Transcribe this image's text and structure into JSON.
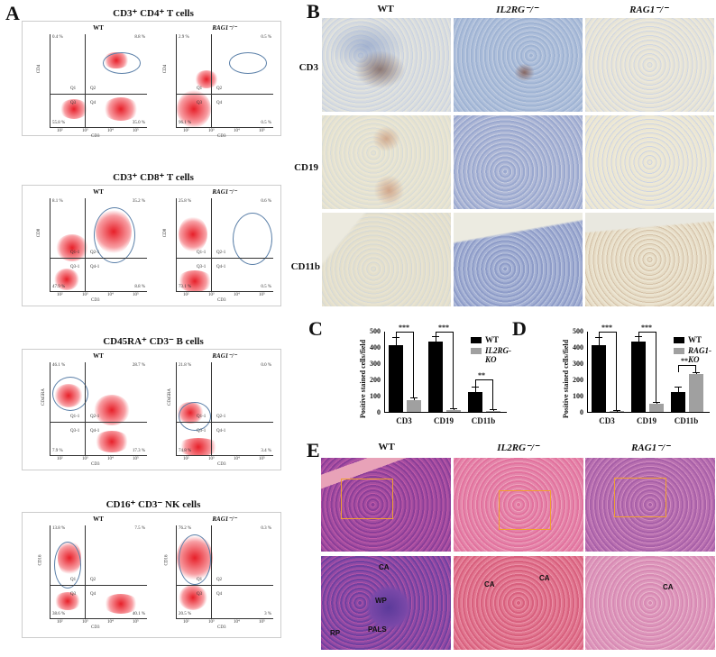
{
  "panels": {
    "A": {
      "label": "A",
      "sections": [
        {
          "title": "CD3⁺ CD4⁺ T cells",
          "ylabel": "CD4",
          "xlabel": "CD3",
          "plots": [
            {
              "group": "WT",
              "q": [
                "0.4 %",
                "8.8 %",
                "55.8 %",
                "35.0 %"
              ],
              "gates": [
                "Q1",
                "Q2",
                "Q3",
                "Q4"
              ]
            },
            {
              "group": "RAG1⁻/⁻",
              "q": [
                "2.9 %",
                "0.5 %",
                "96.1 %",
                "0.5 %"
              ],
              "gates": [
                "Q1",
                "Q2",
                "Q3",
                "Q4"
              ]
            }
          ]
        },
        {
          "title": "CD3⁺ CD8⁺ T cells",
          "ylabel": "CD8",
          "xlabel": "CD3",
          "plots": [
            {
              "group": "WT",
              "q": [
                "8.1 %",
                "35.2 %",
                "47.9 %",
                "8.8 %"
              ],
              "gates": [
                "Q1-1",
                "Q2-1",
                "Q3-1",
                "Q4-1"
              ]
            },
            {
              "group": "RAG1⁻/⁻",
              "q": [
                "25.8 %",
                "0.6 %",
                "73.1 %",
                "0.5 %"
              ],
              "gates": [
                "Q1-1",
                "Q2-1",
                "Q3-1",
                "Q4-1"
              ]
            }
          ]
        },
        {
          "title": "CD45RA⁺ CD3⁻ B cells",
          "ylabel": "CD45RA",
          "xlabel": "CD3",
          "plots": [
            {
              "group": "WT",
              "q": [
                "46.1 %",
                "28.7 %",
                "7.9 %",
                "17.3 %"
              ],
              "gates": [
                "Q1-1",
                "Q2-1",
                "Q3-1",
                "Q4-1"
              ]
            },
            {
              "group": "RAG1⁻/⁻",
              "q": [
                "21.8 %",
                "0.0 %",
                "74.8 %",
                "3.4 %"
              ],
              "gates": [
                "Q1-1",
                "Q2-1",
                "Q3-1",
                "Q4-1"
              ]
            }
          ]
        },
        {
          "title": "CD16⁺ CD3⁻ NK cells",
          "ylabel": "CD16",
          "xlabel": "CD3",
          "plots": [
            {
              "group": "WT",
              "q": [
                "13.8 %",
                "7.5 %",
                "38.6 %",
                "40.1 %"
              ],
              "gates": [
                "Q1",
                "Q2",
                "Q3",
                "Q4"
              ]
            },
            {
              "group": "RAG1⁻/⁻",
              "q": [
                "76.2 %",
                "0.3 %",
                "20.5 %",
                "3 %"
              ],
              "gates": [
                "Q1",
                "Q2",
                "Q3",
                "Q4"
              ]
            }
          ]
        }
      ],
      "ticks": [
        "10²",
        "10³",
        "10⁴",
        "10⁵"
      ]
    },
    "B": {
      "label": "B",
      "columns": [
        "WT",
        "IL2RG⁻/⁻",
        "RAG1⁻/⁻"
      ],
      "rows": [
        "CD3",
        "CD19",
        "CD11b"
      ]
    },
    "C": {
      "label": "C"
    },
    "D": {
      "label": "D"
    },
    "E": {
      "label": "E",
      "columns": [
        "WT",
        "IL2RG⁻/⁻",
        "RAG1⁻/⁻"
      ],
      "annotations": {
        "wt": [
          "CA",
          "WP",
          "PALS",
          "RP"
        ],
        "il2rg": [
          "CA",
          "CA"
        ],
        "rag1": [
          "CA"
        ]
      }
    }
  },
  "chart_data": [
    {
      "id": "C",
      "type": "bar",
      "categories": [
        "CD3",
        "CD19",
        "CD11b"
      ],
      "series": [
        {
          "name": "WT",
          "color": "#000000",
          "values": [
            410,
            435,
            125
          ],
          "errors": [
            48,
            28,
            25
          ]
        },
        {
          "name": "IL2RG-KO",
          "color": "#a0a0a0",
          "values": [
            70,
            12,
            6
          ],
          "errors": [
            12,
            3,
            3
          ]
        }
      ],
      "significance": [
        "***",
        "***",
        "**"
      ],
      "ylabel": "Positive stained cells/field",
      "xlabel": "",
      "ylim": [
        0,
        500
      ],
      "yticks": [
        "0",
        "100",
        "200",
        "300",
        "400",
        "500"
      ],
      "legend_position": "top-right"
    },
    {
      "id": "D",
      "type": "bar",
      "categories": [
        "CD3",
        "CD19",
        "CD11b"
      ],
      "series": [
        {
          "name": "WT",
          "color": "#000000",
          "values": [
            410,
            435,
            125
          ],
          "errors": [
            48,
            28,
            25
          ]
        },
        {
          "name": "RAG1-KO",
          "color": "#a0a0a0",
          "values": [
            3,
            48,
            232
          ],
          "errors": [
            2,
            6,
            8
          ]
        }
      ],
      "significance": [
        "***",
        "***",
        "**"
      ],
      "ylabel": "Positive stained cells/field",
      "xlabel": "",
      "ylim": [
        0,
        500
      ],
      "yticks": [
        "0",
        "100",
        "200",
        "300",
        "400",
        "500"
      ],
      "legend_position": "top-right"
    }
  ]
}
